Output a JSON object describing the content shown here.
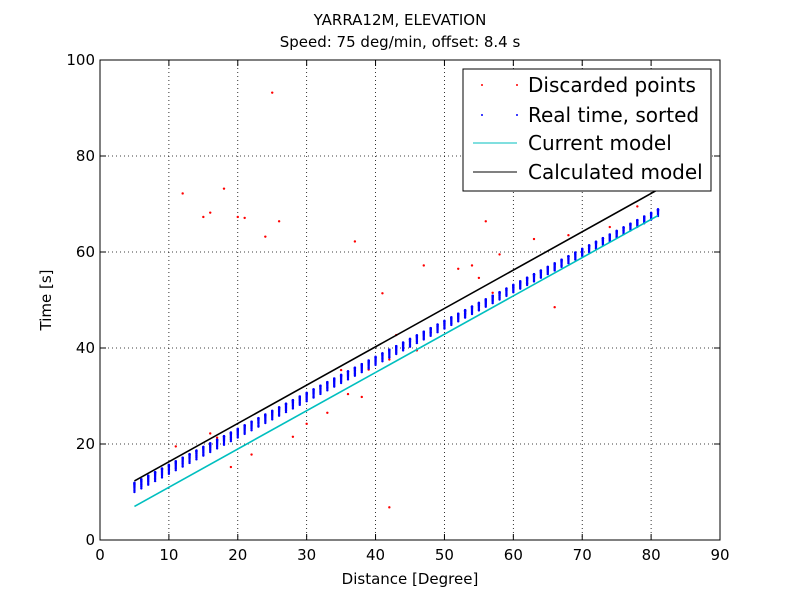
{
  "chart_data": {
    "type": "scatter",
    "title": "YARRA12M, ELEVATION",
    "subtitle": "Speed: 75 deg/min, offset: 8.4 s",
    "xlabel": "Distance [Degree]",
    "ylabel": "Time [s]",
    "xlim": [
      0,
      90
    ],
    "ylim": [
      0,
      100
    ],
    "xticks": [
      "0",
      "10",
      "20",
      "30",
      "40",
      "50",
      "60",
      "70",
      "80",
      "90"
    ],
    "yticks": [
      "0",
      "20",
      "40",
      "60",
      "80",
      "100"
    ],
    "grid": true,
    "legend_position": "top-right",
    "series": [
      {
        "name": "Discarded points",
        "kind": "scatter",
        "color": "#ff0000",
        "points": [
          [
            12,
            72.2
          ],
          [
            15,
            67.3
          ],
          [
            16,
            68.2
          ],
          [
            18,
            73.2
          ],
          [
            20,
            67.3
          ],
          [
            21,
            67.1
          ],
          [
            24,
            63.2
          ],
          [
            25,
            93.2
          ],
          [
            26,
            66.4
          ],
          [
            37,
            62.2
          ],
          [
            41,
            51.4
          ],
          [
            42,
            6.8
          ],
          [
            47,
            57.2
          ],
          [
            52,
            56.5
          ],
          [
            54,
            57.2
          ],
          [
            56,
            66.4
          ],
          [
            66,
            48.5
          ],
          [
            11,
            19.5
          ],
          [
            16,
            22.2
          ],
          [
            17,
            21.3
          ],
          [
            19,
            15.2
          ],
          [
            22,
            17.8
          ],
          [
            28,
            21.5
          ],
          [
            30,
            24.2
          ],
          [
            33,
            26.5
          ],
          [
            36,
            30.4
          ],
          [
            38,
            29.8
          ],
          [
            39,
            35.5
          ],
          [
            42,
            37.6
          ],
          [
            46,
            39.5
          ],
          [
            48,
            43.2
          ],
          [
            50,
            44.8
          ],
          [
            53,
            47.2
          ],
          [
            57,
            51.5
          ],
          [
            62,
            53.4
          ],
          [
            63,
            62.7
          ],
          [
            68,
            63.5
          ],
          [
            74,
            65.2
          ],
          [
            78,
            69.5
          ],
          [
            58,
            59.5
          ],
          [
            43,
            42.7
          ],
          [
            35,
            35.4
          ],
          [
            55,
            54.6
          ]
        ]
      },
      {
        "name": "Real time, sorted",
        "kind": "band",
        "color": "#0000ff",
        "x_start": 5,
        "x_end": 81,
        "x_step": 1,
        "upper": [
          [
            5,
            11.9
          ],
          [
            81,
            68.9
          ]
        ],
        "lower": [
          [
            5,
            10.0
          ],
          [
            81,
            67.5
          ]
        ],
        "lower_sparse": [
          [
            5,
            10.0
          ],
          [
            40,
            28.0
          ],
          [
            81,
            67.5
          ]
        ],
        "points_per_column": 12
      },
      {
        "name": "Current model",
        "kind": "line",
        "color": "#00bfbf",
        "points": [
          [
            5,
            7.0
          ],
          [
            81,
            67.6
          ]
        ]
      },
      {
        "name": "Calculated model",
        "kind": "line",
        "color": "#000000",
        "points": [
          [
            5,
            12.3
          ],
          [
            81,
            73.0
          ]
        ]
      }
    ]
  }
}
